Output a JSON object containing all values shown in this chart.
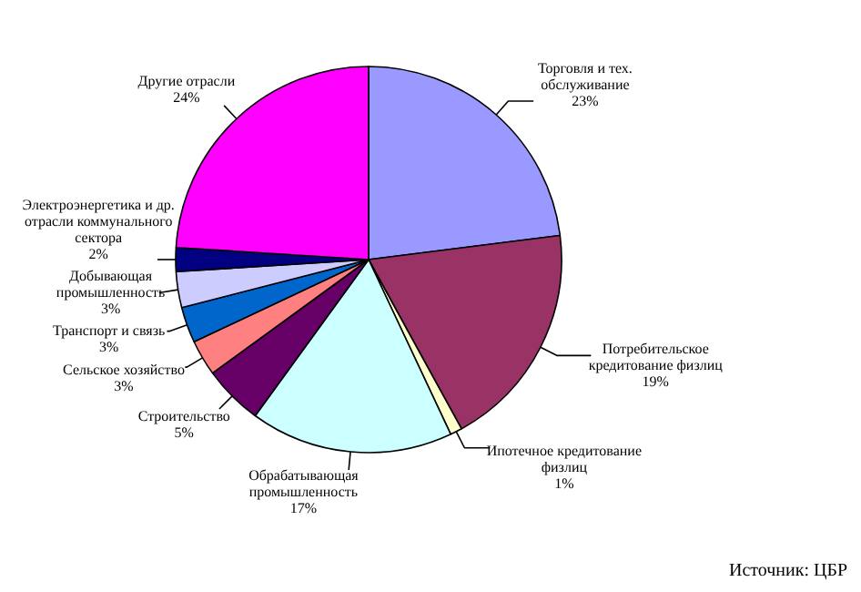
{
  "chart_data": {
    "type": "pie",
    "categories": [
      "Торговля и тех. обслуживание",
      "Потребительское кредитование физлиц",
      "Ипотечное кредитование физлиц",
      "Обрабатывающая промышленность",
      "Строительство",
      "Сельское хозяйство",
      "Транспорт и связь",
      "Добывающая промышленность",
      "Электроэнергетика и др. отрасли коммунального сектора",
      "Другие отрасли"
    ],
    "values": [
      23,
      19,
      1,
      17,
      5,
      3,
      3,
      3,
      2,
      24
    ],
    "value_labels": [
      "23%",
      "19%",
      "1%",
      "17%",
      "5%",
      "3%",
      "3%",
      "3%",
      "2%",
      "24%"
    ],
    "colors": [
      "#9999ff",
      "#993366",
      "#ffffcc",
      "#ccffff",
      "#660066",
      "#ff8080",
      "#0066cc",
      "#ccccff",
      "#000080",
      "#ff00ff"
    ],
    "annotations": [
      "Источник: ЦБР"
    ]
  }
}
